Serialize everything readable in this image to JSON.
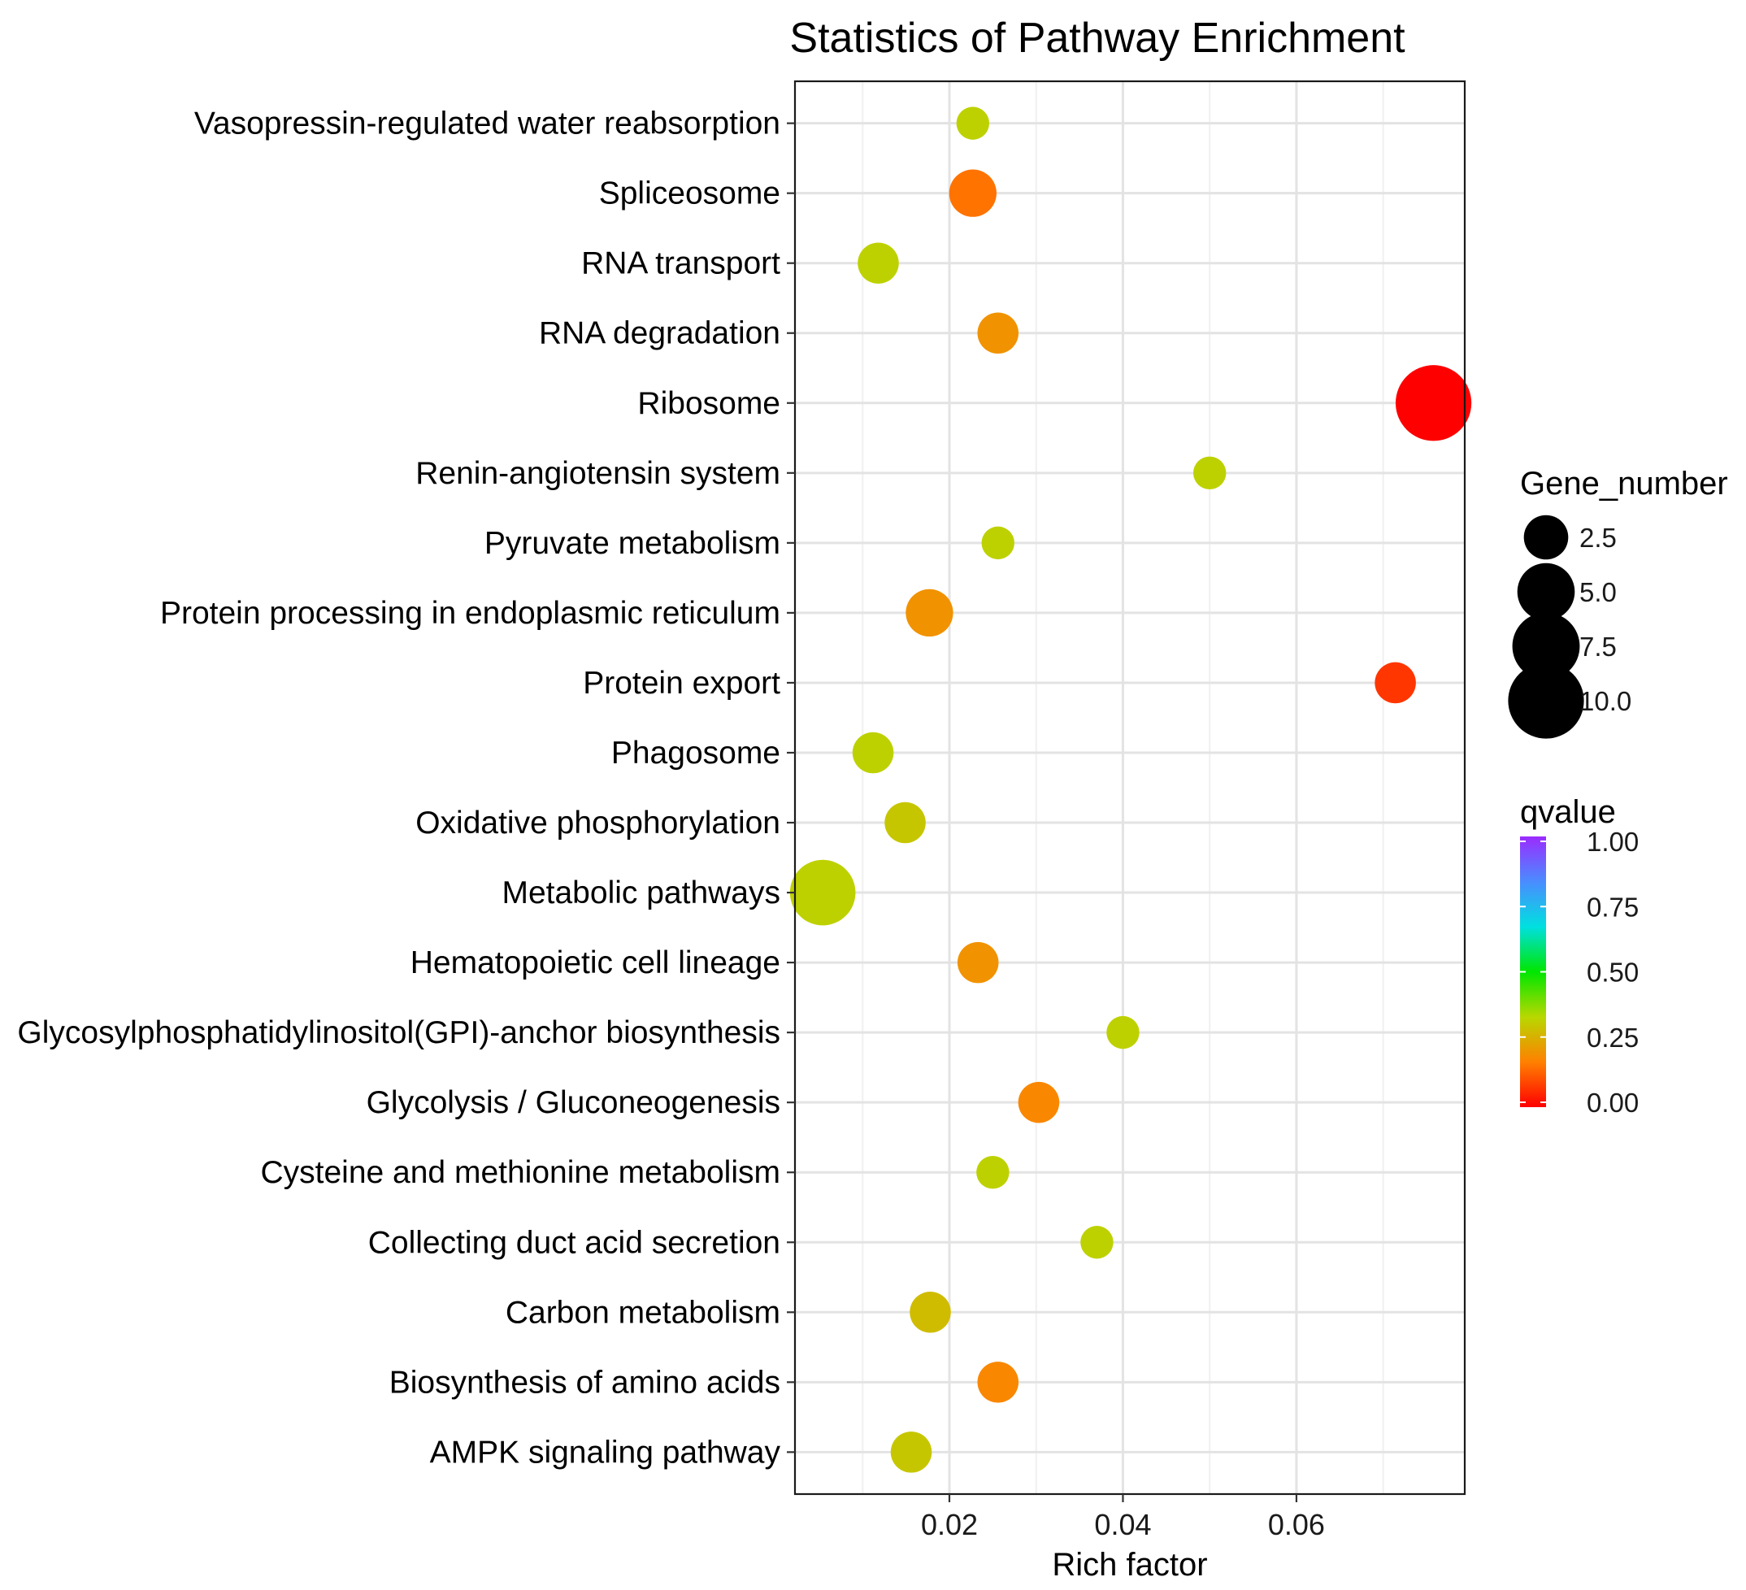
{
  "chart_data": {
    "type": "scatter",
    "title": "Statistics of Pathway Enrichment",
    "xlabel": "Rich factor",
    "ylabel": "",
    "xlim": [
      0.0022,
      0.0794
    ],
    "xticks": [
      0.02,
      0.04,
      0.06
    ],
    "xtick_labels": [
      "0.02",
      "0.04",
      "0.06"
    ],
    "grid": true,
    "categories": [
      "Vasopressin-regulated water reabsorption",
      "Spliceosome",
      "RNA transport",
      "RNA degradation",
      "Ribosome",
      "Renin-angiotensin system",
      "Pyruvate metabolism",
      "Protein processing in endoplasmic reticulum",
      "Protein export",
      "Phagosome",
      "Oxidative phosphorylation",
      "Metabolic pathways",
      "Hematopoietic cell lineage",
      "Glycosylphosphatidylinositol(GPI)-anchor biosynthesis",
      "Glycolysis / Gluconeogenesis",
      "Cysteine and methionine metabolism",
      "Collecting duct acid secretion",
      "Carbon metabolism",
      "Biosynthesis of amino acids",
      "AMPK signaling pathway"
    ],
    "rich_factor": [
      0.0227,
      0.0227,
      0.0118,
      0.0256,
      0.0758,
      0.05,
      0.0256,
      0.0177,
      0.0714,
      0.0112,
      0.0149,
      0.0054,
      0.0233,
      0.04,
      0.0303,
      0.025,
      0.037,
      0.0178,
      0.0256,
      0.0156
    ],
    "gene_number": [
      1,
      3,
      2,
      2,
      10,
      1,
      1,
      3,
      2,
      2,
      2,
      7,
      2,
      1,
      2,
      1,
      1,
      2,
      2,
      2
    ],
    "qvalue": [
      0.32,
      0.15,
      0.32,
      0.2,
      0.0,
      0.32,
      0.32,
      0.2,
      0.07,
      0.32,
      0.3,
      0.32,
      0.2,
      0.32,
      0.18,
      0.32,
      0.32,
      0.28,
      0.18,
      0.3
    ],
    "size_legend": {
      "title": "Gene_number",
      "values": [
        2.5,
        5.0,
        7.5,
        10.0
      ],
      "labels": [
        "2.5",
        "5.0",
        "7.5",
        "10.0"
      ]
    },
    "color_legend": {
      "title": "qvalue",
      "values": [
        1.0,
        0.75,
        0.5,
        0.25,
        0.0
      ],
      "labels": [
        "1.00",
        "0.75",
        "0.50",
        "0.25",
        "0.00"
      ],
      "colors": [
        "#ff0000",
        "#ff8000",
        "#b8d800",
        "#00e600",
        "#00e0e0",
        "#4a8cff",
        "#9b2cff"
      ]
    },
    "legend_position": "right"
  }
}
